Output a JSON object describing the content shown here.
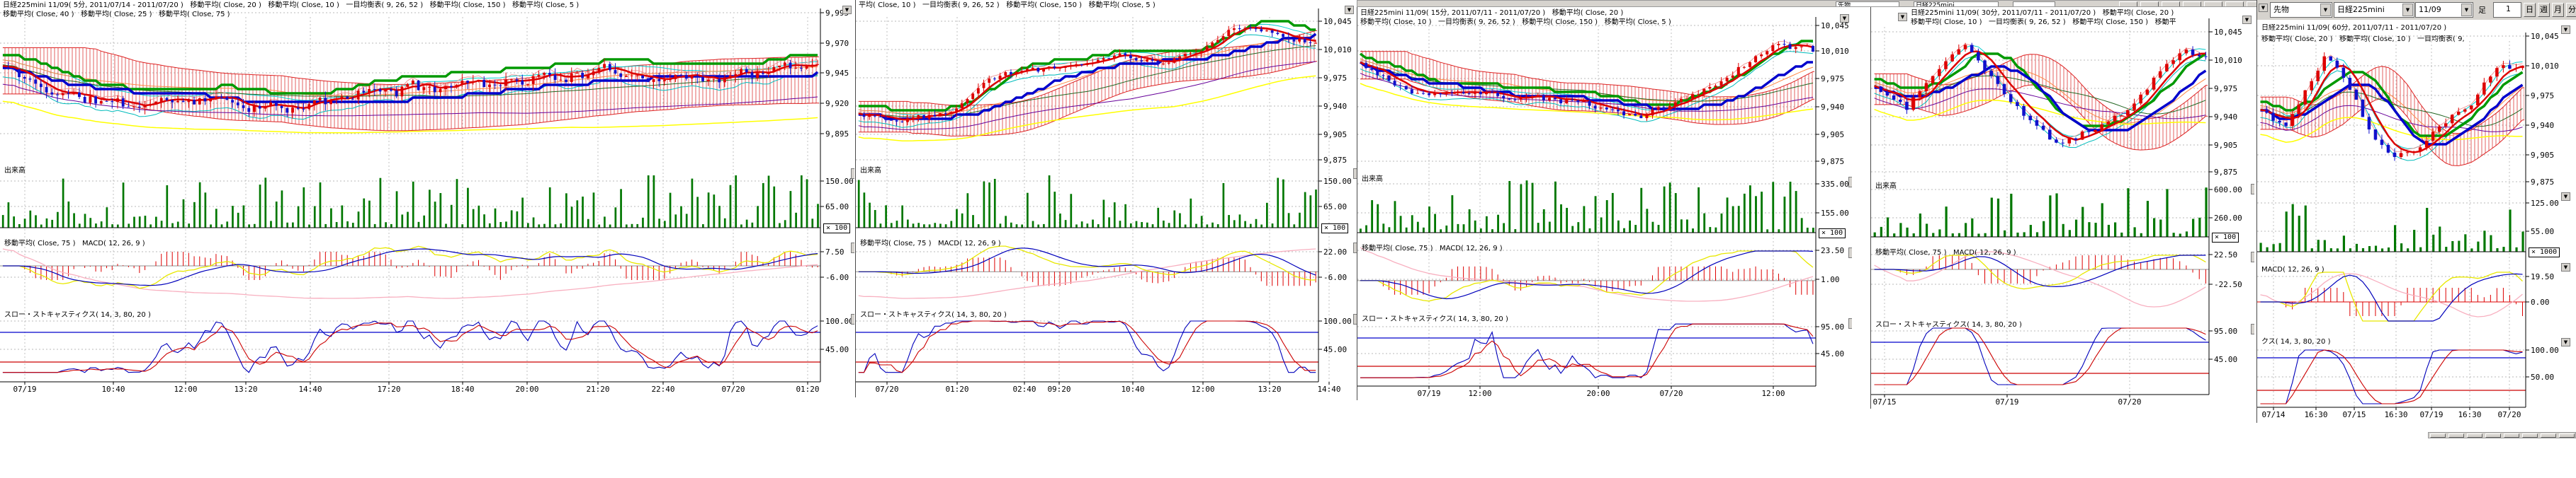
{
  "workspace": {
    "background": "#ffffff"
  },
  "background_toolbar": {
    "combo_labels": [
      "先物",
      "日経225mini"
    ]
  },
  "p5_toolbar": {
    "clipped_combo_fragment": "▼",
    "instrument_type_select": "先物",
    "instrument_select": "日経225mini",
    "contract_select": "11/09",
    "bar_label": "足",
    "bar_value": "1",
    "period_buttons": [
      "日",
      "週",
      "月",
      "分"
    ]
  },
  "panels": [
    {
      "id": "chart-5min",
      "title_line1": "日経225mini 11/09( 5分, 2011/07/14 - 2011/07/20 )   移動平均( Close, 20 )   移動平均( Close, 10 )   一目均衡表( 9, 26, 52 )   移動平均( Close, 150 )   移動平均( Close, 5 )",
      "title_line2": "移動平均( Close, 40 )   移動平均( Close, 25 )   移動平均( Close, 75 )",
      "volume_label": "出来高",
      "macd_label": "移動平均( Close, 75 )   MACD( 12, 26, 9 )",
      "stoch_label": "スロー・ストキャスティクス( 14, 3, 80, 20 )",
      "price_labels": [
        "9,995",
        "9,970",
        "9,945",
        "9,920",
        "9,895"
      ],
      "volume_scale_labels": [
        "150.00",
        "65.00"
      ],
      "volume_multiplier": "× 100",
      "macd_scale_labels": [
        "7.50",
        "-6.00"
      ],
      "stoch_scale_labels": [
        "100.00",
        "45.00"
      ],
      "time_labels": [
        "07/19",
        "10:40",
        "12:00",
        "13:20",
        "14:40",
        "17:20",
        "18:40",
        "20:00",
        "21:20",
        "22:40",
        "07/20",
        "01:20"
      ]
    },
    {
      "id": "chart-10min",
      "title_line1": "平均( Close, 10 )   一目均衡表( 9, 26, 52 )   移動平均( Close, 150 )   移動平均( Close, 5 )",
      "title_line2": null,
      "volume_label": "出来高",
      "macd_label": "移動平均( Close, 75 )   MACD( 12, 26, 9 )",
      "stoch_label": "スロー・ストキャスティクス( 14, 3, 80, 20 )",
      "price_labels": [
        "10,045",
        "10,010",
        "9,975",
        "9,940",
        "9,905",
        "9,875"
      ],
      "volume_scale_labels": [
        "150.00",
        "65.00"
      ],
      "volume_multiplier": "× 100",
      "macd_scale_labels": [
        "22.00",
        "-6.00"
      ],
      "stoch_scale_labels": [
        "100.00",
        "45.00"
      ],
      "time_labels": [
        "07/20",
        "01:20",
        "02:40",
        "09:20",
        "10:40",
        "12:00",
        "13:20",
        "14:40"
      ]
    },
    {
      "id": "chart-15min",
      "title_line1": "日経225mini 11/09( 15分, 2011/07/11 - 2011/07/20 )   移動平均( Close, 20 )",
      "title_line2": "移動平均( Close, 10 )   一目均衡表( 9, 26, 52 )   移動平均( Close, 150 )   移動平均( Close, 5 )",
      "volume_label": "出来高",
      "macd_label": "移動平均( Close, 75 )   MACD( 12, 26, 9 )",
      "stoch_label": "スロー・ストキャスティクス( 14, 3, 80, 20 )",
      "price_labels": [
        "10,045",
        "10,010",
        "9,975",
        "9,940",
        "9,905",
        "9,875"
      ],
      "volume_scale_labels": [
        "335.00",
        "155.00"
      ],
      "volume_multiplier": "× 100",
      "macd_scale_labels": [
        "23.50",
        "1.00"
      ],
      "stoch_scale_labels": [
        "95.00",
        "45.00"
      ],
      "time_labels": [
        "07/19",
        "12:00",
        "20:00",
        "07/20",
        "12:00"
      ]
    },
    {
      "id": "chart-30min",
      "title_line1": "日経225mini 11/09( 30分, 2011/07/11 - 2011/07/20 )   移動平均( Close, 20 )",
      "title_line2": "移動平均( Close, 10 )   一目均衡表( 9, 26, 52 )   移動平均( Close, 150 )   移動平",
      "volume_label": "出来高",
      "macd_label": "移動平均( Close, 75 )   MACD( 12, 26, 9 )",
      "stoch_label": "スロー・ストキャスティクス( 14, 3, 80, 20 )",
      "price_labels": [
        "10,045",
        "10,010",
        "9,975",
        "9,940",
        "9,905",
        "9,875"
      ],
      "volume_scale_labels": [
        "600.00",
        "260.00"
      ],
      "volume_multiplier": "× 100",
      "macd_scale_labels": [
        "22.50",
        "-22.50"
      ],
      "stoch_scale_labels": [
        "95.00",
        "45.00"
      ],
      "time_labels": [
        "07/15",
        "07/19",
        "07/20"
      ]
    },
    {
      "id": "chart-60min",
      "title_line1": "日経225mini 11/09( 60分, 2011/07/11 - 2011/07/20 )",
      "title_line2": "移動平均( Close, 20 )   移動平均( Close, 10 )   一目均衡表( 9,",
      "volume_label": null,
      "macd_label": "MACD( 12, 26, 9 )",
      "stoch_label": "クス( 14, 3, 80, 20 )",
      "price_labels": [
        "10,045",
        "10,010",
        "9,975",
        "9,940",
        "9,905",
        "9,875"
      ],
      "volume_scale_labels": [
        "125.00",
        "55.00"
      ],
      "volume_multiplier": "× 1000",
      "macd_scale_labels": [
        "19.50",
        "0.00"
      ],
      "stoch_scale_labels": [
        "100.00",
        "50.00"
      ],
      "time_labels": [
        "07/14",
        "16:30",
        "07/15",
        "16:30",
        "07/19",
        "16:30",
        "07/20"
      ]
    }
  ]
}
